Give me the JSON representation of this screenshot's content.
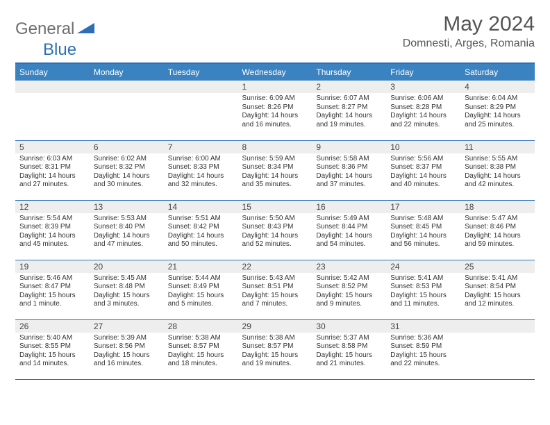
{
  "logo": {
    "part1": "General",
    "part2": "Blue"
  },
  "title": {
    "month": "May 2024",
    "location": "Domnesti, Arges, Romania"
  },
  "theme": {
    "header_bg": "#3b83c0",
    "header_text": "#ffffff",
    "rule_color": "#2d6fb5",
    "daynum_bg": "#eeeeee",
    "body_text": "#333333",
    "logo_gray": "#6e6e6e",
    "logo_blue": "#2d6fb5",
    "background": "#ffffff",
    "font": "Arial",
    "title_fontsize": 30,
    "header_fontsize": 12,
    "body_fontsize": 10
  },
  "day_headers": [
    "Sunday",
    "Monday",
    "Tuesday",
    "Wednesday",
    "Thursday",
    "Friday",
    "Saturday"
  ],
  "weeks": [
    [
      null,
      null,
      null,
      {
        "n": "1",
        "sr": "6:09 AM",
        "ss": "8:26 PM",
        "dl": "14 hours and 16 minutes."
      },
      {
        "n": "2",
        "sr": "6:07 AM",
        "ss": "8:27 PM",
        "dl": "14 hours and 19 minutes."
      },
      {
        "n": "3",
        "sr": "6:06 AM",
        "ss": "8:28 PM",
        "dl": "14 hours and 22 minutes."
      },
      {
        "n": "4",
        "sr": "6:04 AM",
        "ss": "8:29 PM",
        "dl": "14 hours and 25 minutes."
      }
    ],
    [
      {
        "n": "5",
        "sr": "6:03 AM",
        "ss": "8:31 PM",
        "dl": "14 hours and 27 minutes."
      },
      {
        "n": "6",
        "sr": "6:02 AM",
        "ss": "8:32 PM",
        "dl": "14 hours and 30 minutes."
      },
      {
        "n": "7",
        "sr": "6:00 AM",
        "ss": "8:33 PM",
        "dl": "14 hours and 32 minutes."
      },
      {
        "n": "8",
        "sr": "5:59 AM",
        "ss": "8:34 PM",
        "dl": "14 hours and 35 minutes."
      },
      {
        "n": "9",
        "sr": "5:58 AM",
        "ss": "8:36 PM",
        "dl": "14 hours and 37 minutes."
      },
      {
        "n": "10",
        "sr": "5:56 AM",
        "ss": "8:37 PM",
        "dl": "14 hours and 40 minutes."
      },
      {
        "n": "11",
        "sr": "5:55 AM",
        "ss": "8:38 PM",
        "dl": "14 hours and 42 minutes."
      }
    ],
    [
      {
        "n": "12",
        "sr": "5:54 AM",
        "ss": "8:39 PM",
        "dl": "14 hours and 45 minutes."
      },
      {
        "n": "13",
        "sr": "5:53 AM",
        "ss": "8:40 PM",
        "dl": "14 hours and 47 minutes."
      },
      {
        "n": "14",
        "sr": "5:51 AM",
        "ss": "8:42 PM",
        "dl": "14 hours and 50 minutes."
      },
      {
        "n": "15",
        "sr": "5:50 AM",
        "ss": "8:43 PM",
        "dl": "14 hours and 52 minutes."
      },
      {
        "n": "16",
        "sr": "5:49 AM",
        "ss": "8:44 PM",
        "dl": "14 hours and 54 minutes."
      },
      {
        "n": "17",
        "sr": "5:48 AM",
        "ss": "8:45 PM",
        "dl": "14 hours and 56 minutes."
      },
      {
        "n": "18",
        "sr": "5:47 AM",
        "ss": "8:46 PM",
        "dl": "14 hours and 59 minutes."
      }
    ],
    [
      {
        "n": "19",
        "sr": "5:46 AM",
        "ss": "8:47 PM",
        "dl": "15 hours and 1 minute."
      },
      {
        "n": "20",
        "sr": "5:45 AM",
        "ss": "8:48 PM",
        "dl": "15 hours and 3 minutes."
      },
      {
        "n": "21",
        "sr": "5:44 AM",
        "ss": "8:49 PM",
        "dl": "15 hours and 5 minutes."
      },
      {
        "n": "22",
        "sr": "5:43 AM",
        "ss": "8:51 PM",
        "dl": "15 hours and 7 minutes."
      },
      {
        "n": "23",
        "sr": "5:42 AM",
        "ss": "8:52 PM",
        "dl": "15 hours and 9 minutes."
      },
      {
        "n": "24",
        "sr": "5:41 AM",
        "ss": "8:53 PM",
        "dl": "15 hours and 11 minutes."
      },
      {
        "n": "25",
        "sr": "5:41 AM",
        "ss": "8:54 PM",
        "dl": "15 hours and 12 minutes."
      }
    ],
    [
      {
        "n": "26",
        "sr": "5:40 AM",
        "ss": "8:55 PM",
        "dl": "15 hours and 14 minutes."
      },
      {
        "n": "27",
        "sr": "5:39 AM",
        "ss": "8:56 PM",
        "dl": "15 hours and 16 minutes."
      },
      {
        "n": "28",
        "sr": "5:38 AM",
        "ss": "8:57 PM",
        "dl": "15 hours and 18 minutes."
      },
      {
        "n": "29",
        "sr": "5:38 AM",
        "ss": "8:57 PM",
        "dl": "15 hours and 19 minutes."
      },
      {
        "n": "30",
        "sr": "5:37 AM",
        "ss": "8:58 PM",
        "dl": "15 hours and 21 minutes."
      },
      {
        "n": "31",
        "sr": "5:36 AM",
        "ss": "8:59 PM",
        "dl": "15 hours and 22 minutes."
      },
      null
    ]
  ],
  "labels": {
    "sunrise": "Sunrise: ",
    "sunset": "Sunset: ",
    "daylight": "Daylight: "
  }
}
